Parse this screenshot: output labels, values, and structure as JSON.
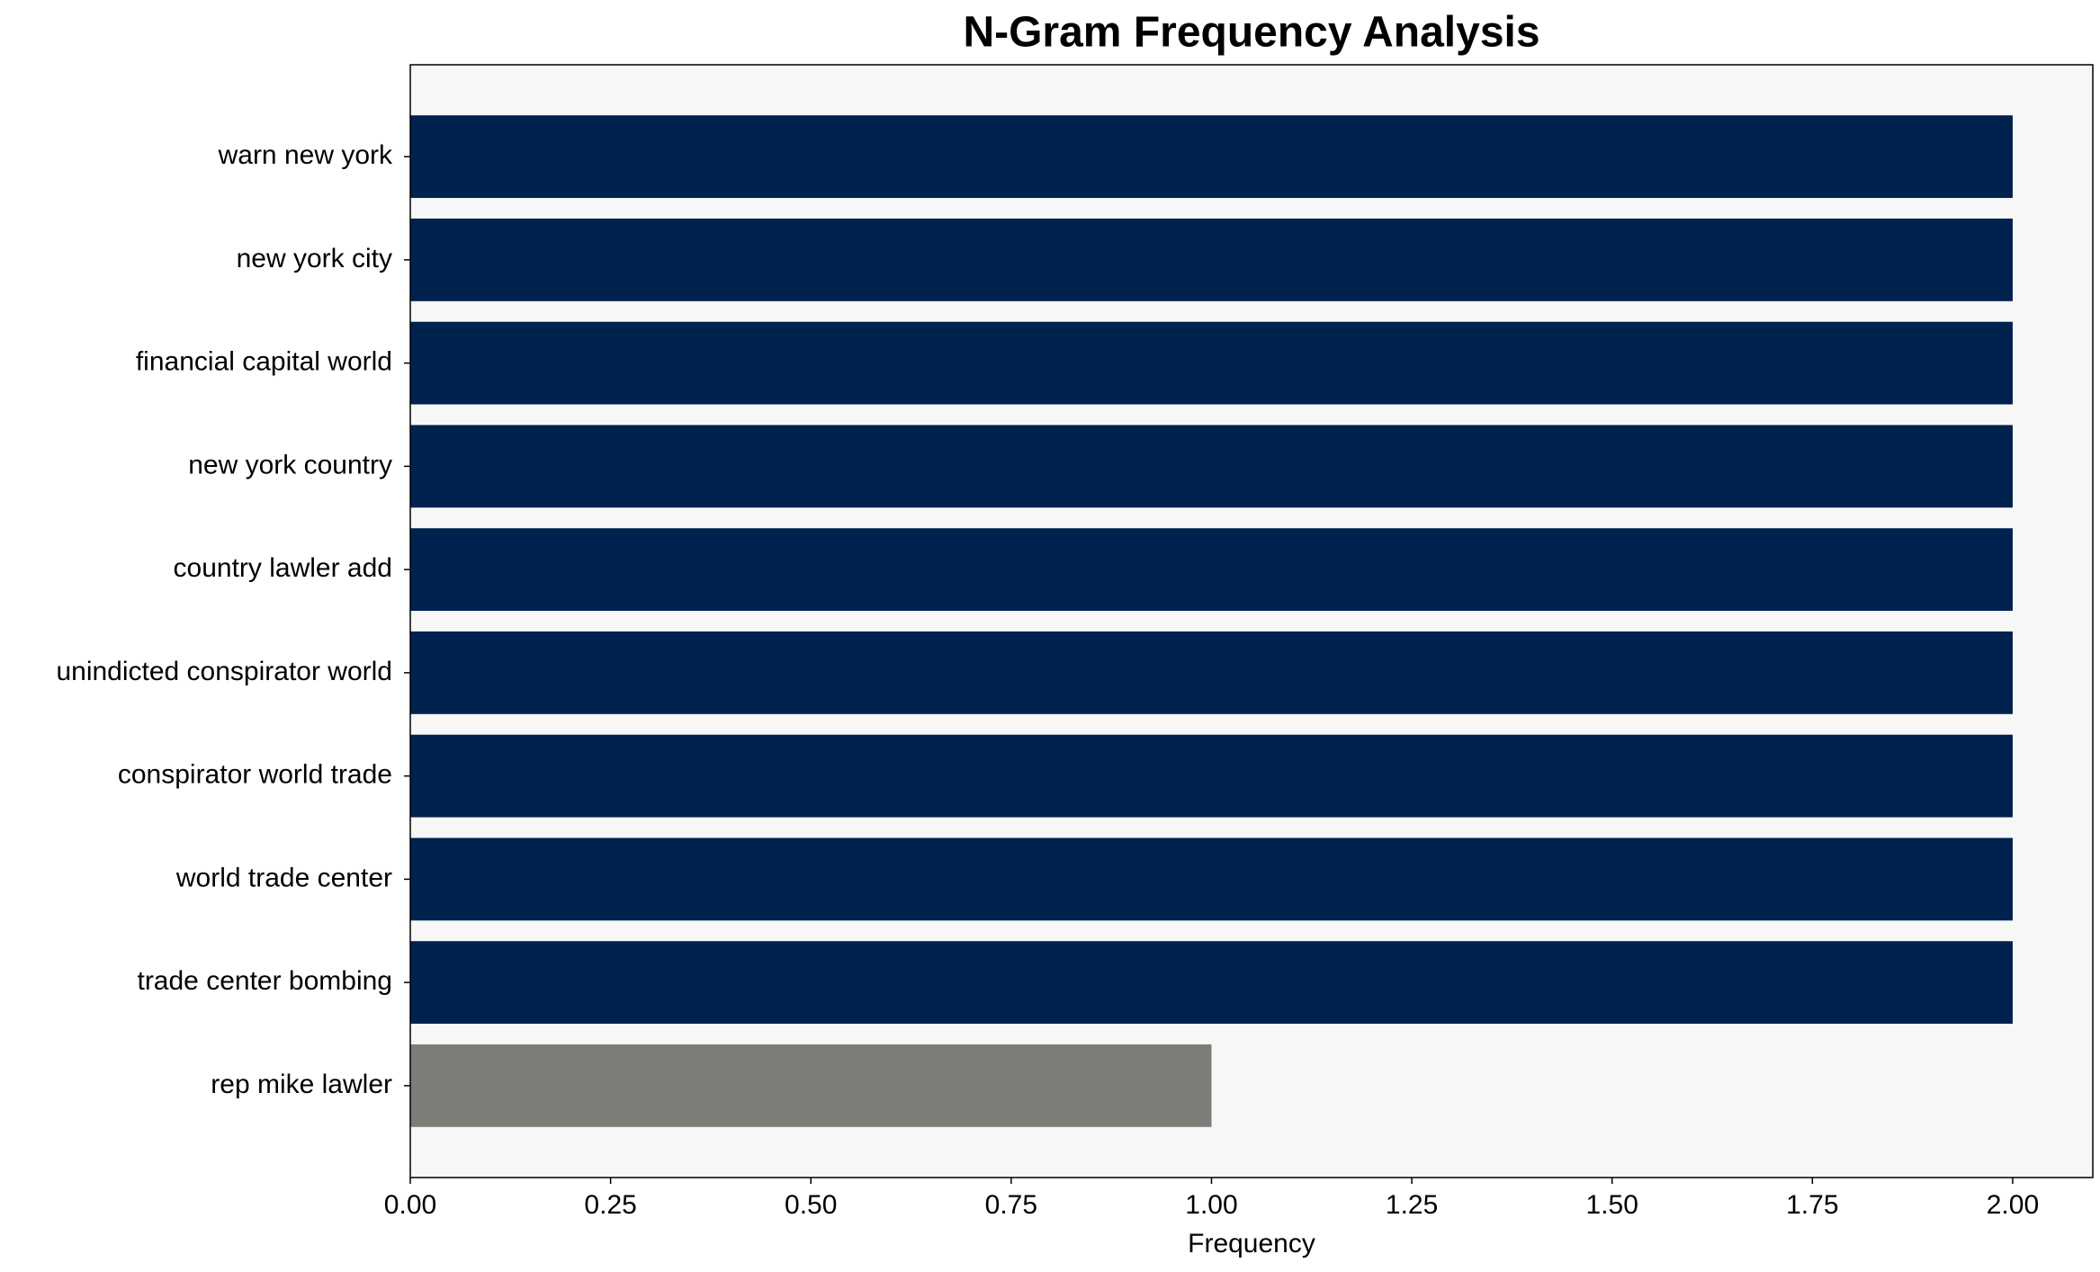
{
  "chart_data": {
    "type": "barh",
    "title": "N-Gram Frequency Analysis",
    "xlabel": "Frequency",
    "categories": [
      "warn new york",
      "new york city",
      "financial capital world",
      "new york country",
      "country lawler add",
      "unindicted conspirator world",
      "conspirator world trade",
      "world trade center",
      "trade center bombing",
      "rep mike lawler"
    ],
    "values": [
      2,
      2,
      2,
      2,
      2,
      2,
      2,
      2,
      2,
      1
    ],
    "colors": [
      "#00224e",
      "#00224e",
      "#00224e",
      "#00224e",
      "#00224e",
      "#00224e",
      "#00224e",
      "#00224e",
      "#00224e",
      "#7d7c77"
    ],
    "xlim": [
      0,
      2.1
    ],
    "xticks": [
      {
        "value": 0,
        "label": "0.00"
      },
      {
        "value": 0.25,
        "label": "0.25"
      },
      {
        "value": 0.5,
        "label": "0.50"
      },
      {
        "value": 0.75,
        "label": "0.75"
      },
      {
        "value": 1,
        "label": "1.00"
      },
      {
        "value": 1.25,
        "label": "1.25"
      },
      {
        "value": 1.5,
        "label": "1.50"
      },
      {
        "value": 1.75,
        "label": "1.75"
      },
      {
        "value": 2,
        "label": "2.00"
      }
    ],
    "background": "#f7f7f7"
  }
}
